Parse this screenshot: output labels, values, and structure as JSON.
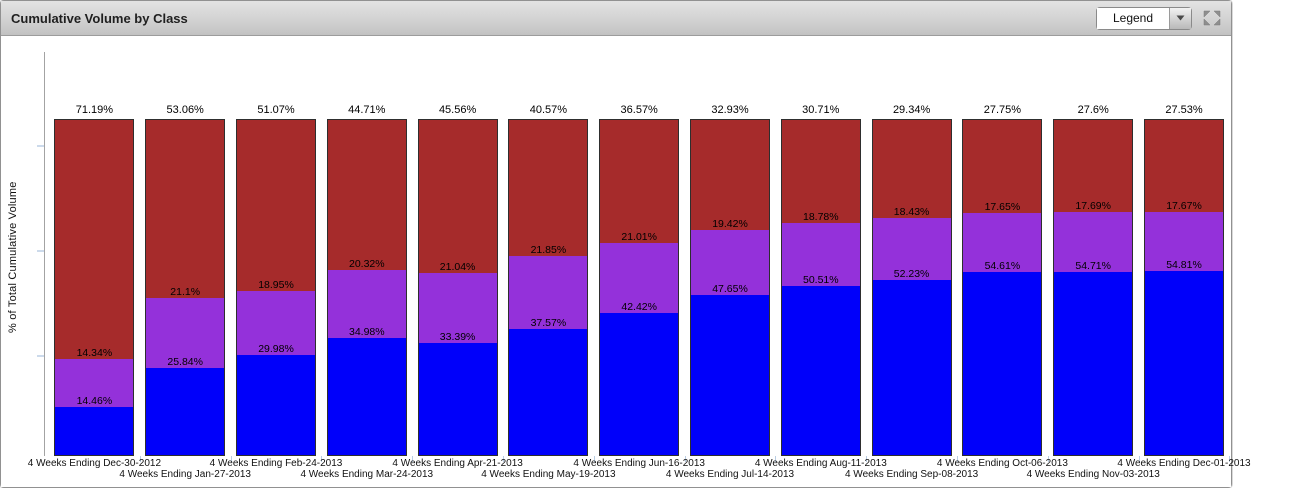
{
  "panel": {
    "title": "Cumulative Volume by Class"
  },
  "header": {
    "legend_label": "Legend",
    "expand_icon": "expand-arrows-icon",
    "dropdown_arrow_icon": "chevron-down-icon"
  },
  "colors": {
    "series_blue": "#0000fa",
    "series_purple": "#9431da",
    "series_red": "#a62b2b",
    "bar_border": "#2e2e2e",
    "axis": "#a3a3a3",
    "tick": "#ccdaeb"
  },
  "chart_data": {
    "type": "bar",
    "variant": "100%-stacked-column",
    "title": "Cumulative Volume by Class",
    "xlabel": "",
    "ylabel": "% of Total Cumulative Volume",
    "ylim": [
      0,
      100
    ],
    "grid": false,
    "legend_position": "collapsed-dropdown",
    "x_labels_staggered": true,
    "categories": [
      "4 Weeks Ending Dec-30-2012",
      "4 Weeks Ending Jan-27-2013",
      "4 Weeks Ending Feb-24-2013",
      "4 Weeks Ending Mar-24-2013",
      "4 Weeks Ending Apr-21-2013",
      "4 Weeks Ending May-19-2013",
      "4 Weeks Ending Jun-16-2013",
      "4 Weeks Ending Jul-14-2013",
      "4 Weeks Ending Aug-11-2013",
      "4 Weeks Ending Sep-08-2013",
      "4 Weeks Ending Oct-06-2013",
      "4 Weeks Ending Nov-03-2013",
      "4 Weeks Ending Dec-01-2013"
    ],
    "series": [
      {
        "name": "blue",
        "color": "#0000fa",
        "stack_order": "bottom",
        "labels": [
          "14.46%",
          "25.84%",
          "29.98%",
          "34.98%",
          "33.39%",
          "37.57%",
          "42.42%",
          "47.65%",
          "50.51%",
          "52.23%",
          "54.61%",
          "54.71%",
          "54.81%"
        ],
        "values": [
          14.46,
          25.84,
          29.98,
          34.98,
          33.39,
          37.57,
          42.42,
          47.65,
          50.51,
          52.23,
          54.61,
          54.71,
          54.81
        ]
      },
      {
        "name": "purple",
        "color": "#9431da",
        "stack_order": "middle",
        "labels": [
          "14.34%",
          "21.1%",
          "18.95%",
          "20.32%",
          "21.04%",
          "21.85%",
          "21.01%",
          "19.42%",
          "18.78%",
          "18.43%",
          "17.65%",
          "17.69%",
          "17.67%"
        ],
        "values": [
          14.34,
          21.1,
          18.95,
          20.32,
          21.04,
          21.85,
          21.01,
          19.42,
          18.78,
          18.43,
          17.65,
          17.69,
          17.67
        ]
      },
      {
        "name": "red",
        "color": "#a62b2b",
        "stack_order": "top",
        "labels": [
          "71.19%",
          "53.06%",
          "51.07%",
          "44.71%",
          "45.56%",
          "40.57%",
          "36.57%",
          "32.93%",
          "30.71%",
          "29.34%",
          "27.75%",
          "27.6%",
          "27.53%"
        ],
        "values": [
          71.19,
          53.06,
          51.07,
          44.71,
          45.56,
          40.57,
          36.57,
          32.93,
          30.71,
          29.34,
          27.75,
          27.6,
          27.53
        ]
      }
    ]
  }
}
